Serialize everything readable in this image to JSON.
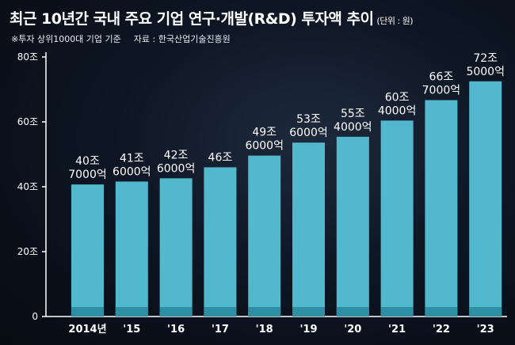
{
  "title": "최근 10년간 국내 주요 기업 연구·개발(R&D) 투자액 추이",
  "unit_note": "(단위 : 원)",
  "footnote": "※투자 상위1000대 기업 기준",
  "source": "자료 : 한국산업기술진흥원",
  "colors": {
    "bar": "#52b8cd",
    "bar_base": "#2e8ea3",
    "axis": "#ffffff"
  },
  "chart_data": {
    "type": "bar",
    "categories": [
      "2014년",
      "'15",
      "'16",
      "'17",
      "'18",
      "'19",
      "'20",
      "'21",
      "'22",
      "'23"
    ],
    "values": [
      40.7,
      41.6,
      42.6,
      46,
      49.6,
      53.6,
      55.4,
      60.4,
      66.7,
      72.5
    ],
    "data_labels": [
      [
        "40조",
        "7000억"
      ],
      [
        "41조",
        "6000억"
      ],
      [
        "42조",
        "6000억"
      ],
      [
        "46조"
      ],
      [
        "49조",
        "6000억"
      ],
      [
        "53조",
        "6000억"
      ],
      [
        "55조",
        "4000억"
      ],
      [
        "60조",
        "4000억"
      ],
      [
        "66조",
        "7000억"
      ],
      [
        "72조",
        "5000억"
      ]
    ],
    "yticks": [
      "0",
      "20조",
      "40조",
      "60조",
      "80조"
    ],
    "ytick_values": [
      0,
      20,
      40,
      60,
      80
    ],
    "ylim": [
      0,
      80
    ],
    "grid": false,
    "legend": "none"
  }
}
